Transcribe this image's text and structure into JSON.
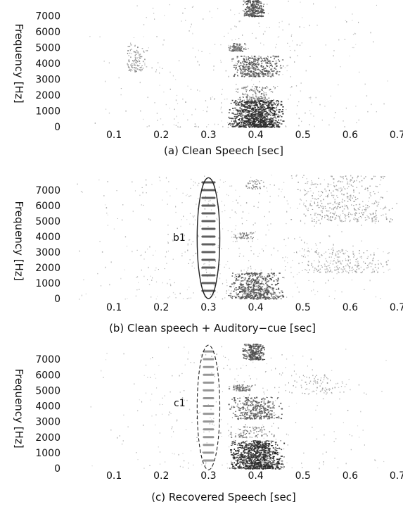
{
  "chart_data": [
    {
      "type": "heatmap",
      "panel": "a",
      "title": "(a) Clean Speech [sec]",
      "xlabel": "",
      "ylabel": "Frequency [Hz]",
      "xlim": [
        0,
        0.7
      ],
      "ylim": [
        0,
        8000
      ],
      "xticks": [
        0.1,
        0.2,
        0.3,
        0.4,
        0.5,
        0.6,
        0.7
      ],
      "xtick_labels": [
        "0.1",
        "0.2",
        "0.3",
        "0.4",
        "0.5",
        "0.6",
        "0.7"
      ],
      "yticks": [
        0,
        1000,
        2000,
        3000,
        4000,
        5000,
        6000,
        7000
      ],
      "ytick_labels": [
        "0",
        "1000",
        "2000",
        "3000",
        "4000",
        "5000",
        "6000",
        "7000"
      ],
      "annotation": "",
      "blobs": [
        {
          "t0": 0.34,
          "t1": 0.46,
          "f0": 0,
          "f1": 1700,
          "n": 900,
          "w": 1.0
        },
        {
          "t0": 0.35,
          "t1": 0.45,
          "f0": 1700,
          "f1": 2600,
          "n": 120,
          "w": 0.6
        },
        {
          "t0": 0.34,
          "t1": 0.46,
          "f0": 3200,
          "f1": 4500,
          "n": 360,
          "w": 0.75
        },
        {
          "t0": 0.34,
          "t1": 0.38,
          "f0": 4800,
          "f1": 5300,
          "n": 90,
          "w": 0.65
        },
        {
          "t0": 0.37,
          "t1": 0.42,
          "f0": 7000,
          "f1": 8000,
          "n": 260,
          "w": 0.8
        },
        {
          "t0": 0.12,
          "t1": 0.17,
          "f0": 3500,
          "f1": 5200,
          "n": 110,
          "w": 0.4
        },
        {
          "t0": 0.02,
          "t1": 0.7,
          "f0": 0,
          "f1": 8000,
          "n": 360,
          "w": 0.2
        }
      ]
    },
    {
      "type": "heatmap",
      "panel": "b",
      "title": "(b) Clean speech + Auditory−cue [sec]",
      "xlabel": "",
      "ylabel": "Frequency [Hz]",
      "xlim": [
        0,
        0.7
      ],
      "ylim": [
        0,
        8000
      ],
      "xticks": [
        0.1,
        0.2,
        0.3,
        0.4,
        0.5,
        0.6,
        0.7
      ],
      "xtick_labels": [
        "0.1",
        "0.2",
        "0.3",
        "0.4",
        "0.5",
        "0.6",
        "0.7"
      ],
      "yticks": [
        0,
        1000,
        2000,
        3000,
        4000,
        5000,
        6000,
        7000
      ],
      "ytick_labels": [
        "0",
        "1000",
        "2000",
        "3000",
        "4000",
        "5000",
        "6000",
        "7000"
      ],
      "annotation": "b1",
      "ellipse": {
        "t": 0.3,
        "f": 3900,
        "rt": 0.024,
        "rf": 3900
      },
      "harmonics": {
        "t0": 0.285,
        "t1": 0.315,
        "f_step": 500,
        "f_max": 7700
      },
      "blobs": [
        {
          "t0": 0.34,
          "t1": 0.46,
          "f0": 0,
          "f1": 1700,
          "n": 520,
          "w": 0.8
        },
        {
          "t0": 0.35,
          "t1": 0.4,
          "f0": 3900,
          "f1": 4300,
          "n": 50,
          "w": 0.55
        },
        {
          "t0": 0.37,
          "t1": 0.42,
          "f0": 7100,
          "f1": 7700,
          "n": 40,
          "w": 0.55
        },
        {
          "t0": 0.47,
          "t1": 0.7,
          "f0": 5000,
          "f1": 8000,
          "n": 420,
          "w": 0.35
        },
        {
          "t0": 0.47,
          "t1": 0.7,
          "f0": 1700,
          "f1": 3200,
          "n": 260,
          "w": 0.3
        },
        {
          "t0": 0.0,
          "t1": 0.7,
          "f0": 0,
          "f1": 8000,
          "n": 520,
          "w": 0.2
        }
      ]
    },
    {
      "type": "heatmap",
      "panel": "c",
      "title": "(c) Recovered Speech [sec]",
      "xlabel": "",
      "ylabel": "Frequency [Hz]",
      "xlim": [
        0,
        0.7
      ],
      "ylim": [
        0,
        8000
      ],
      "xticks": [
        0.1,
        0.2,
        0.3,
        0.4,
        0.5,
        0.6,
        0.7
      ],
      "xtick_labels": [
        "0.1",
        "0.2",
        "0.3",
        "0.4",
        "0.5",
        "0.6",
        "0.7"
      ],
      "yticks": [
        0,
        1000,
        2000,
        3000,
        4000,
        5000,
        6000,
        7000
      ],
      "ytick_labels": [
        "0",
        "1000",
        "2000",
        "3000",
        "4000",
        "5000",
        "6000",
        "7000"
      ],
      "annotation": "c1",
      "ellipse": {
        "t": 0.3,
        "f": 3900,
        "rt": 0.024,
        "rf": 4000
      },
      "harmonics": {
        "t0": 0.288,
        "t1": 0.312,
        "f_step": 500,
        "f_max": 7700,
        "faint": true
      },
      "blobs": [
        {
          "t0": 0.34,
          "t1": 0.46,
          "f0": 0,
          "f1": 1800,
          "n": 850,
          "w": 1.0
        },
        {
          "t0": 0.34,
          "t1": 0.45,
          "f0": 2000,
          "f1": 2700,
          "n": 90,
          "w": 0.55
        },
        {
          "t0": 0.34,
          "t1": 0.46,
          "f0": 3200,
          "f1": 4600,
          "n": 330,
          "w": 0.75
        },
        {
          "t0": 0.34,
          "t1": 0.4,
          "f0": 5000,
          "f1": 5400,
          "n": 80,
          "w": 0.6
        },
        {
          "t0": 0.37,
          "t1": 0.42,
          "f0": 7000,
          "f1": 8000,
          "n": 240,
          "w": 0.8
        },
        {
          "t0": 0.46,
          "t1": 0.6,
          "f0": 4800,
          "f1": 6000,
          "n": 90,
          "w": 0.3
        },
        {
          "t0": 0.02,
          "t1": 0.7,
          "f0": 0,
          "f1": 8000,
          "n": 320,
          "w": 0.2
        }
      ]
    }
  ]
}
